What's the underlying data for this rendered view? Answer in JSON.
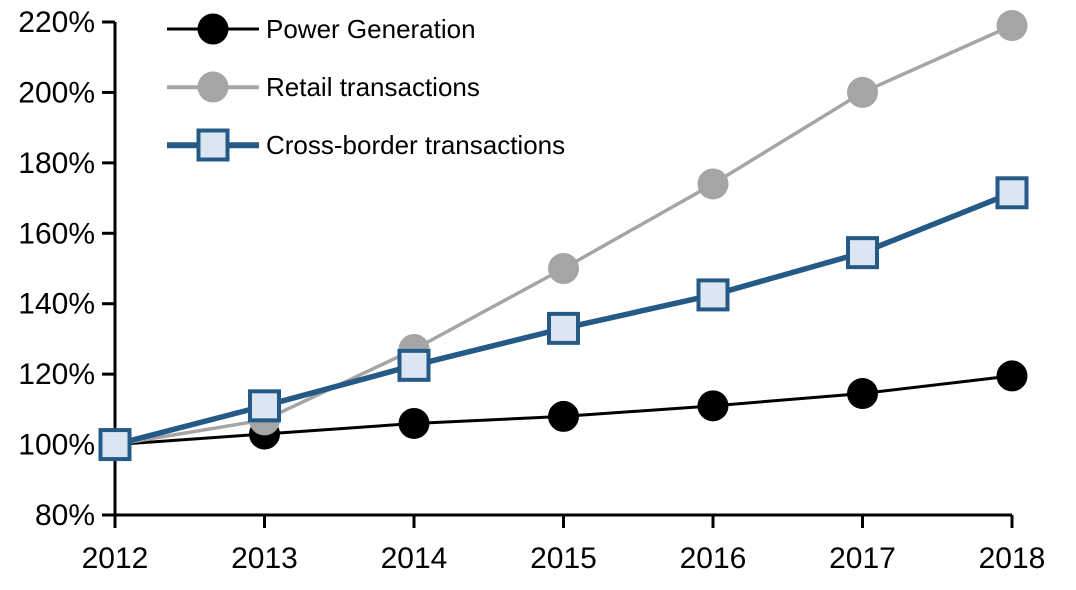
{
  "chart_data": {
    "type": "line",
    "x_categories": [
      "2012",
      "2013",
      "2014",
      "2015",
      "2016",
      "2017",
      "2018"
    ],
    "series": [
      {
        "name": "Power Generation",
        "values": [
          100,
          103,
          106,
          108,
          111,
          114.5,
          119.5
        ],
        "color": "#000000",
        "marker": "circle",
        "marker_fill": "#000000",
        "line_width": 3
      },
      {
        "name": "Retail transactions",
        "values": [
          100,
          107,
          127,
          150,
          174,
          200,
          219
        ],
        "color": "#a5a5a5",
        "marker": "circle",
        "marker_fill": "#a5a5a5",
        "line_width": 3.5
      },
      {
        "name": "Cross-border transactions",
        "values": [
          100,
          111,
          122.5,
          133,
          142.5,
          154.5,
          171.5
        ],
        "color": "#255a87",
        "marker": "square",
        "marker_fill": "#dce6f2",
        "line_width": 5.5
      }
    ],
    "ylim": [
      80,
      220
    ],
    "ytick_step": 20,
    "ytick_labels": [
      "80%",
      "100%",
      "120%",
      "140%",
      "160%",
      "180%",
      "200%",
      "220%"
    ],
    "title": "",
    "xlabel": "",
    "ylabel": "",
    "grid": false,
    "legend_position": "top-left",
    "background_color": "#ffffff",
    "axis_color": "#000000"
  }
}
